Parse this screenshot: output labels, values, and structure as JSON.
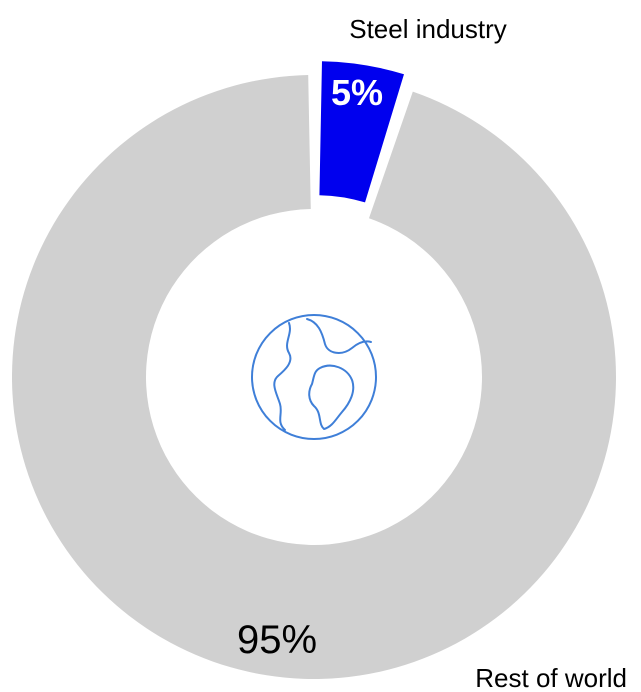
{
  "chart_data": {
    "type": "pie",
    "variant": "donut",
    "slices": [
      {
        "label": "Steel industry",
        "value": 5,
        "value_label": "5%",
        "color": "#0000EE",
        "exploded": true
      },
      {
        "label": "Rest of world",
        "value": 95,
        "value_label": "95%",
        "color": "#D0D0D0",
        "exploded": false
      }
    ],
    "center_icon": "globe-icon",
    "icon_color": "#3F7FD8"
  }
}
